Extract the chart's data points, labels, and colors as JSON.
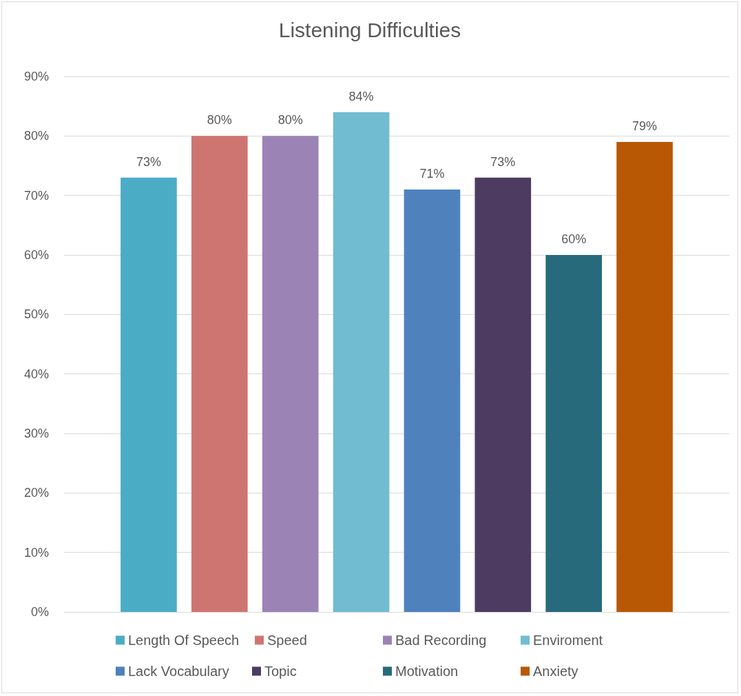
{
  "chart_data": {
    "type": "bar",
    "title": "Listening Difficulties",
    "categories": [
      null
    ],
    "series": [
      {
        "name": "Length Of Speech",
        "color": "#4bacc6",
        "values": [
          73
        ],
        "value_labels": [
          "73%"
        ]
      },
      {
        "name": "Speed",
        "color": "#cf7571",
        "values": [
          80
        ],
        "value_labels": [
          "80%"
        ]
      },
      {
        "name": "Bad Recording",
        "color": "#9b83b5",
        "values": [
          80
        ],
        "value_labels": [
          "80%"
        ]
      },
      {
        "name": "Enviroment",
        "color": "#71bcd1",
        "values": [
          84
        ],
        "value_labels": [
          "84%"
        ]
      },
      {
        "name": "Lack Vocabulary",
        "color": "#4f81bd",
        "values": [
          71
        ],
        "value_labels": [
          "71%"
        ]
      },
      {
        "name": "Topic",
        "color": "#4e3b61",
        "values": [
          73
        ],
        "value_labels": [
          "73%"
        ]
      },
      {
        "name": "Motivation",
        "color": "#276a7c",
        "values": [
          60
        ],
        "value_labels": [
          "60%"
        ]
      },
      {
        "name": "Anxiety",
        "color": "#b85804",
        "values": [
          79
        ],
        "value_labels": [
          "79%"
        ]
      }
    ],
    "ylim": [
      0,
      90
    ],
    "yticks": [
      {
        "value": 0,
        "label": "0%"
      },
      {
        "value": 10,
        "label": "10%"
      },
      {
        "value": 20,
        "label": "20%"
      },
      {
        "value": 30,
        "label": "30%"
      },
      {
        "value": 40,
        "label": "40%"
      },
      {
        "value": 50,
        "label": "50%"
      },
      {
        "value": 60,
        "label": "60%"
      },
      {
        "value": 70,
        "label": "70%"
      },
      {
        "value": 80,
        "label": "80%"
      },
      {
        "value": 90,
        "label": "90%"
      }
    ],
    "grid": "y",
    "legend": "bottom"
  }
}
